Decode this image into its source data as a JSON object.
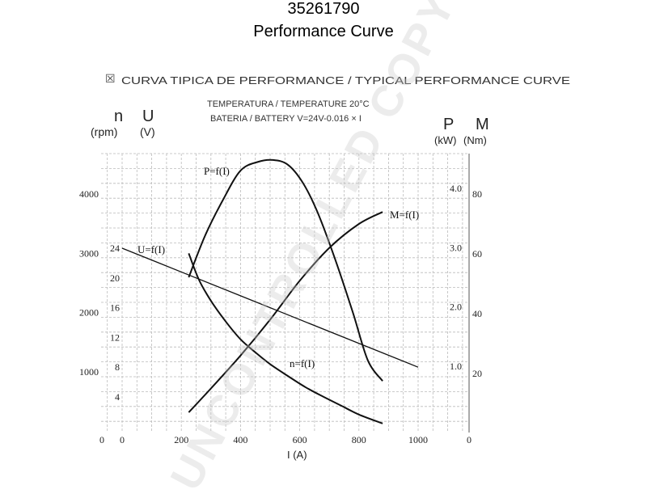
{
  "header": {
    "part_number": "35261790",
    "title": "Performance Curve"
  },
  "chart_header": {
    "typical_curve": "CURVA TIPICA DE PERFORMANCE / TYPICAL PERFORMANCE CURVE",
    "temperature": "TEMPERATURA / TEMPERATURE   20°C",
    "battery": "BATERIA / BATTERY  V=24V-0.016 × I"
  },
  "axis_labels": {
    "n": "n",
    "n_unit": "(rpm)",
    "u": "U",
    "u_unit": "(V)",
    "p": "P",
    "p_unit": "(kW)",
    "m": "M",
    "m_unit": "(Nm)",
    "x": "I (A)"
  },
  "watermark": "UNCONTROLLED COPY",
  "chart_data": {
    "type": "line",
    "title": "TYPICAL PERFORMANCE CURVE",
    "xlabel": "I (A)",
    "xlim": [
      0,
      1000
    ],
    "grid": true,
    "x_ticks": [
      "0",
      "200",
      "400",
      "600",
      "800",
      "1000"
    ],
    "axes": {
      "n_rpm": {
        "range": [
          0,
          4500
        ],
        "ticks": [
          "1000",
          "2000",
          "3000",
          "4000"
        ],
        "zero": "0"
      },
      "U_V": {
        "range": [
          0,
          27
        ],
        "ticks": [
          "4",
          "8",
          "12",
          "16",
          "20",
          "24"
        ],
        "zero": "0"
      },
      "P_kW": {
        "range": [
          0,
          4.5
        ],
        "ticks": [
          "1.0",
          "2.0",
          "3.0",
          "4.0"
        ],
        "zero": "0"
      },
      "M_Nm": {
        "range": [
          0,
          90
        ],
        "ticks": [
          "20",
          "40",
          "60",
          "80"
        ],
        "zero": "0"
      }
    },
    "series": [
      {
        "name": "P=f(I)",
        "axis": "P_kW",
        "x": [
          225,
          280,
          340,
          400,
          460,
          510,
          560,
          610,
          660,
          720,
          780,
          830,
          880
        ],
        "y": [
          2.5,
          3.2,
          3.8,
          4.3,
          4.45,
          4.48,
          4.4,
          4.1,
          3.6,
          2.8,
          1.9,
          1.1,
          0.75
        ]
      },
      {
        "name": "M=f(I)",
        "axis": "M_Nm",
        "x": [
          225,
          300,
          400,
          500,
          600,
          700,
          800,
          880
        ],
        "y": [
          7,
          15,
          26,
          38,
          51,
          62,
          70,
          74
        ]
      },
      {
        "name": "U=f(I)",
        "axis": "U_V",
        "x": [
          0,
          200,
          400,
          600,
          800,
          1000
        ],
        "y": [
          24,
          20.8,
          17.6,
          14.4,
          11.2,
          8
        ]
      },
      {
        "name": "n=f(I)",
        "axis": "n_rpm",
        "x": [
          225,
          260,
          300,
          350,
          400,
          450,
          500,
          560,
          620,
          680,
          740,
          800,
          880
        ],
        "y": [
          3000,
          2550,
          2200,
          1850,
          1550,
          1330,
          1130,
          930,
          740,
          580,
          430,
          280,
          130
        ]
      }
    ]
  }
}
